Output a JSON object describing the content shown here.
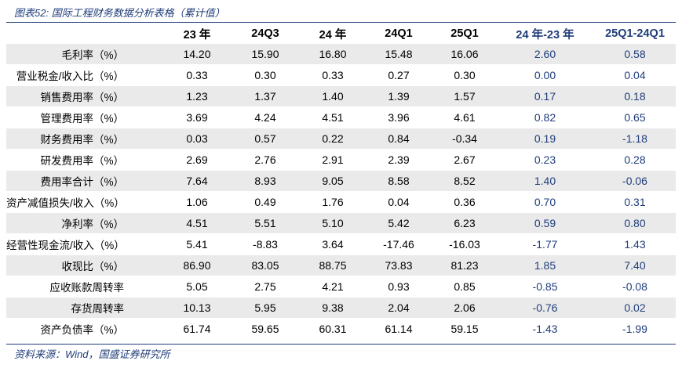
{
  "title": "图表52:  国际工程财务数据分析表格（累计值）",
  "columns": [
    "",
    "23 年",
    "24Q3",
    "24 年",
    "24Q1",
    "25Q1",
    "24 年-23 年",
    "25Q1-24Q1"
  ],
  "rows": [
    {
      "label": "毛利率（%）",
      "values": [
        "14.20",
        "15.90",
        "16.80",
        "15.48",
        "16.06",
        "2.60",
        "0.58"
      ]
    },
    {
      "label": "营业税金/收入比（%）",
      "values": [
        "0.33",
        "0.30",
        "0.33",
        "0.27",
        "0.30",
        "0.00",
        "0.04"
      ]
    },
    {
      "label": "销售费用率（%）",
      "values": [
        "1.23",
        "1.37",
        "1.40",
        "1.39",
        "1.57",
        "0.17",
        "0.18"
      ]
    },
    {
      "label": "管理费用率（%）",
      "values": [
        "3.69",
        "4.24",
        "4.51",
        "3.96",
        "4.61",
        "0.82",
        "0.65"
      ]
    },
    {
      "label": "财务费用率（%）",
      "values": [
        "0.03",
        "0.57",
        "0.22",
        "0.84",
        "-0.34",
        "0.19",
        "-1.18"
      ]
    },
    {
      "label": "研发费用率（%）",
      "values": [
        "2.69",
        "2.76",
        "2.91",
        "2.39",
        "2.67",
        "0.23",
        "0.28"
      ]
    },
    {
      "label": "费用率合计（%）",
      "values": [
        "7.64",
        "8.93",
        "9.05",
        "8.58",
        "8.52",
        "1.40",
        "-0.06"
      ]
    },
    {
      "label": "资产减值损失/收入（%）",
      "values": [
        "1.06",
        "0.49",
        "1.76",
        "0.04",
        "0.36",
        "0.70",
        "0.31"
      ]
    },
    {
      "label": "净利率（%）",
      "values": [
        "4.51",
        "5.51",
        "5.10",
        "5.42",
        "6.23",
        "0.59",
        "0.80"
      ]
    },
    {
      "label": "经营性现金流/收入（%）",
      "values": [
        "5.41",
        "-8.83",
        "3.64",
        "-17.46",
        "-16.03",
        "-1.77",
        "1.43"
      ]
    },
    {
      "label": "收现比（%）",
      "values": [
        "86.90",
        "83.05",
        "88.75",
        "73.83",
        "81.23",
        "1.85",
        "7.40"
      ]
    },
    {
      "label": "应收账款周转率",
      "values": [
        "5.05",
        "2.75",
        "4.21",
        "0.93",
        "0.85",
        "-0.85",
        "-0.08"
      ]
    },
    {
      "label": "存货周转率",
      "values": [
        "10.13",
        "5.95",
        "9.38",
        "2.04",
        "2.06",
        "-0.76",
        "0.02"
      ]
    },
    {
      "label": "资产负债率（%）",
      "values": [
        "61.74",
        "59.65",
        "60.31",
        "61.14",
        "59.15",
        "-1.43",
        "-1.99"
      ]
    }
  ],
  "source": "资料来源：Wind，国盛证券研究所",
  "colors": {
    "accent": "#1f3d7a",
    "stripe": "#eaeaea"
  }
}
